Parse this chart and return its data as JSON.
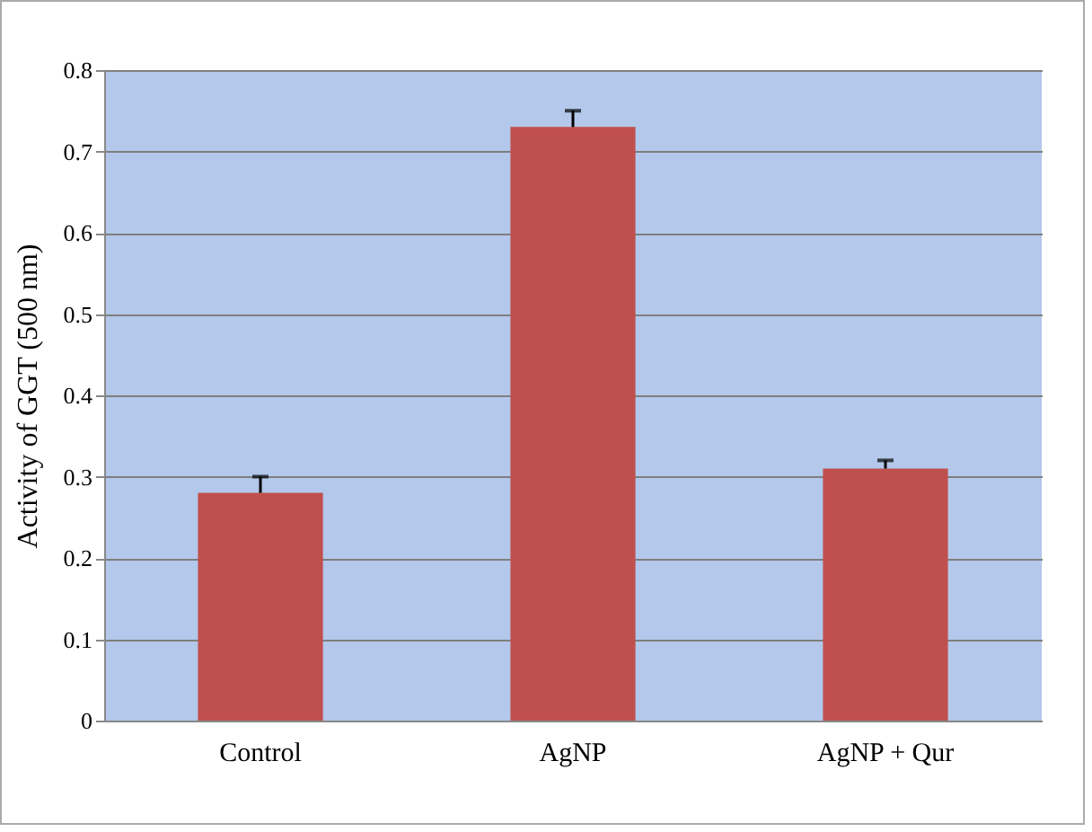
{
  "chart_data": {
    "type": "bar",
    "ylabel": "Activity of GGT (500 nm)",
    "categories": [
      "Control",
      "AgNP",
      "AgNP + Qur"
    ],
    "values": [
      0.28,
      0.73,
      0.31
    ],
    "color": "#c0504d",
    "errors": [
      [
        0.28,
        0.3
      ],
      [
        0.73,
        0.75
      ],
      [
        0.31,
        0.32
      ]
    ],
    "ylim": [
      0,
      0.8
    ],
    "yticks": [
      {
        "value": 0,
        "label": "0"
      },
      0.1,
      0.2,
      0.3,
      0.4,
      0.5,
      0.6,
      0.7,
      0.8
    ],
    "grid": "y"
  }
}
